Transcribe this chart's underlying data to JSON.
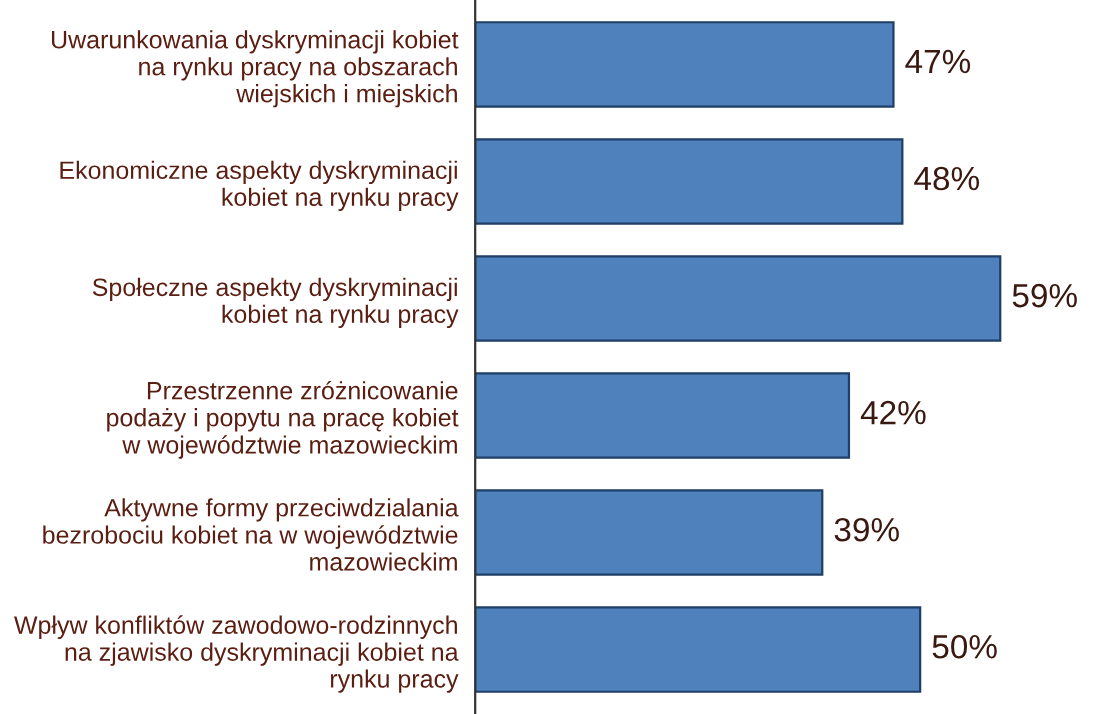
{
  "chart_data": {
    "type": "bar",
    "orientation": "horizontal",
    "categories": [
      "Uwarunkowania dyskryminacji kobiet\nna rynku pracy na obszarach\nwiejskich i miejskich",
      "Ekonomiczne aspekty dyskryminacji\nkobiet na rynku pracy",
      "Społeczne aspekty dyskryminacji\nkobiet na rynku pracy",
      "Przestrzenne zróżnicowanie\npodaży i popytu na pracę kobiet\nw województwie mazowieckim",
      "Aktywne formy przeciwdzialania\nbezrobociu kobiet na w województwie\nmazowieckim",
      "Wpływ konfliktów zawodowo-rodzinnych\nna zjawisko dyskryminacji kobiet na\nrynku pracy"
    ],
    "values": [
      47,
      48,
      59,
      42,
      39,
      50
    ],
    "value_labels": [
      "47%",
      "48%",
      "59%",
      "42%",
      "39%",
      "50%"
    ],
    "color": "#4f81bd",
    "tick_labels": "y",
    "grid": false,
    "legend": false
  }
}
